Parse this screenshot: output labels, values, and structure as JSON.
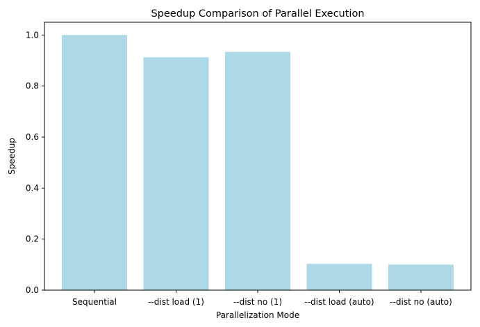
{
  "chart_data": {
    "type": "bar",
    "title": "Speedup Comparison of Parallel Execution",
    "xlabel": "Parallelization Mode",
    "ylabel": "Speedup",
    "categories": [
      "Sequential",
      "--dist load (1)",
      "--dist no (1)",
      "--dist load (auto)",
      "--dist no (auto)"
    ],
    "values": [
      1.0,
      0.913,
      0.934,
      0.103,
      0.1
    ],
    "ylim": [
      0,
      1.05
    ],
    "yticks": [
      "0.0",
      "0.2",
      "0.4",
      "0.6",
      "0.8",
      "1.0"
    ],
    "grid": false,
    "bar_color": "#add8e6"
  }
}
